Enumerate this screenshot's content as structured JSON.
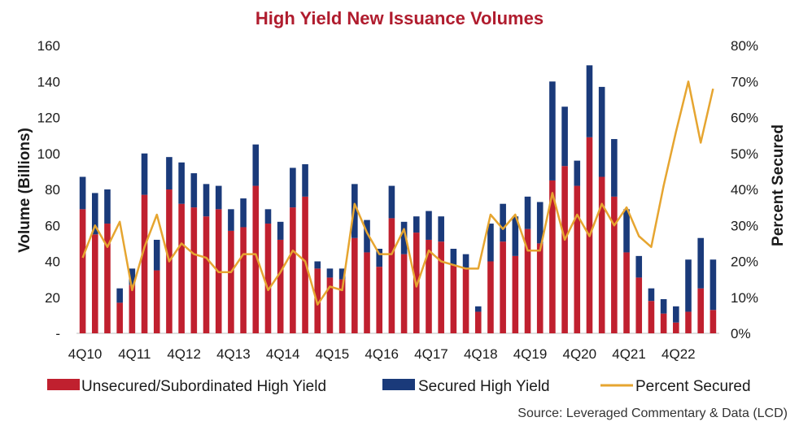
{
  "chart_data": {
    "type": "bar",
    "title": "High Yield New Issuance Volumes",
    "ylabel": "Volume (Billions)",
    "y2label": "Percent Secured",
    "ylim": [
      0,
      160
    ],
    "y2lim": [
      0,
      80
    ],
    "y_ticks": [
      "-",
      "20",
      "40",
      "60",
      "80",
      "100",
      "120",
      "140",
      "160"
    ],
    "y2_ticks": [
      "0%",
      "10%",
      "20%",
      "30%",
      "40%",
      "50%",
      "60%",
      "70%",
      "80%"
    ],
    "x_tick_labels": [
      "4Q10",
      "4Q11",
      "4Q12",
      "4Q13",
      "4Q14",
      "4Q15",
      "4Q16",
      "4Q17",
      "4Q18",
      "4Q19",
      "4Q20",
      "4Q21",
      "4Q22"
    ],
    "legend_position": "bottom",
    "stacked": true,
    "colors": {
      "unsecured": "#c0202f",
      "secured": "#1a3a7a",
      "percent": "#e6a530"
    },
    "series": [
      {
        "name": "Unsecured/Subordinated High Yield",
        "type": "bar",
        "values": [
          69,
          55,
          61,
          17,
          27,
          77,
          35,
          80,
          72,
          70,
          65,
          69,
          57,
          59,
          82,
          61,
          52,
          70,
          76,
          36,
          31,
          30,
          53,
          45,
          37,
          64,
          44,
          56,
          52,
          51,
          38,
          36,
          12,
          40,
          51,
          43,
          58,
          50,
          85,
          93,
          82,
          109,
          87,
          76,
          45,
          31,
          18,
          11,
          6,
          12,
          25,
          13
        ]
      },
      {
        "name": "Secured High Yield",
        "type": "bar",
        "values": [
          18,
          23,
          19,
          8,
          9,
          23,
          17,
          18,
          23,
          19,
          18,
          13,
          12,
          16,
          23,
          8,
          10,
          22,
          18,
          4,
          5,
          6,
          30,
          18,
          10,
          18,
          18,
          9,
          16,
          14,
          9,
          8,
          3,
          21,
          21,
          22,
          18,
          23,
          55,
          33,
          14,
          40,
          50,
          32,
          24,
          12,
          7,
          8,
          9,
          29,
          28,
          28
        ]
      },
      {
        "name": "Percent Secured",
        "type": "line",
        "axis": "right",
        "values": [
          21,
          30,
          24,
          31,
          12,
          24,
          33,
          20,
          25,
          22,
          21,
          17,
          17,
          22,
          22,
          12,
          17,
          23,
          20,
          8,
          13,
          12,
          36,
          28,
          22,
          22,
          29,
          13,
          23,
          20,
          19,
          18,
          18,
          33,
          29,
          33,
          23,
          23,
          39,
          26,
          33,
          27,
          36,
          30,
          35,
          27,
          24,
          41,
          56,
          70,
          53,
          68
        ]
      }
    ]
  },
  "legend": {
    "unsecured": "Unsecured/Subordinated High Yield",
    "secured": "Secured High Yield",
    "percent": "Percent Secured"
  },
  "source": "Source: Leveraged Commentary & Data (LCD)"
}
